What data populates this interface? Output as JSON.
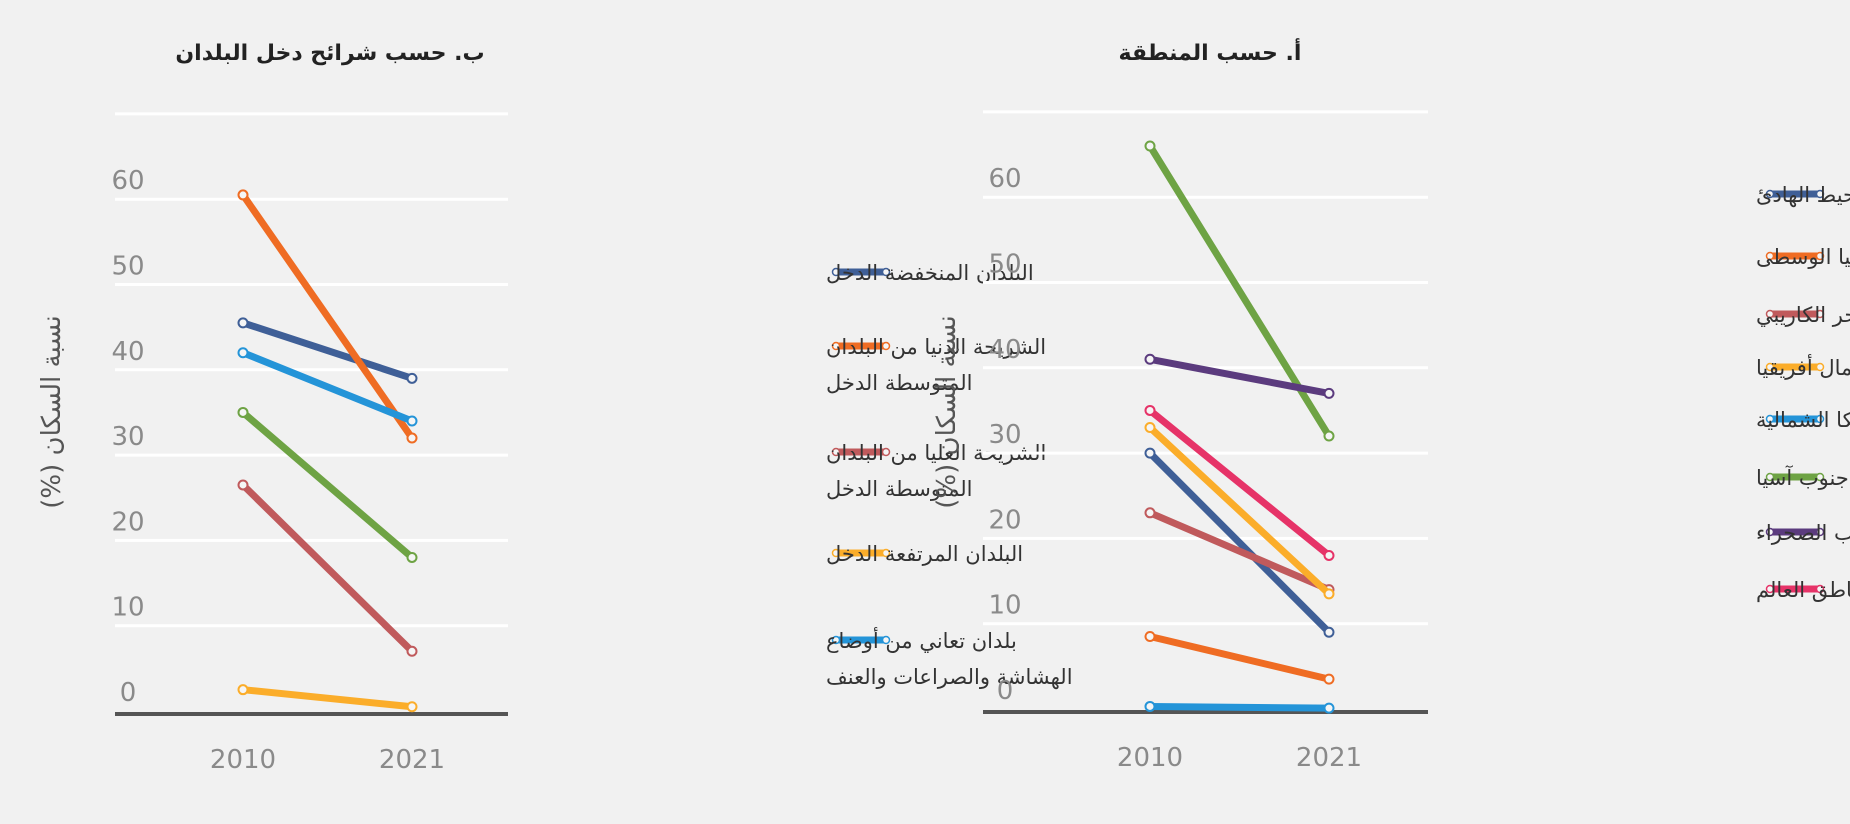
{
  "chart_data": [
    {
      "type": "line",
      "title": "ب. حسب شرائح دخل البلدان",
      "ylabel": "نسبة السكان (%)",
      "x": [
        "2010",
        "2021"
      ],
      "yticks": [
        0,
        10,
        20,
        30,
        40,
        50,
        60
      ],
      "ylim": [
        0,
        70
      ],
      "grid": true,
      "legend_position": "right",
      "series": [
        {
          "name": "البلدان المنخفضة الدخل",
          "values": [
            45.5,
            39
          ],
          "color": "#3f5f97"
        },
        {
          "name": "الشريحة الدنيا من البلدان المتوسطة الدخل",
          "values": [
            60.5,
            32
          ],
          "color": "#ef6c23"
        },
        {
          "name": "الشريحة العليا من البلدان المتوسطة الدخل",
          "values": [
            26.5,
            7
          ],
          "color": "#c05a5c"
        },
        {
          "name": "البلدان المرتفعة الدخل",
          "values": [
            2.5,
            0.5
          ],
          "color": "#fbad2a"
        },
        {
          "name": "بلدان تعاني من أوضاع الهشاشة والصراعات والعنف",
          "values": [
            42,
            34
          ],
          "color": "#2494d8"
        },
        {
          "name": "",
          "values": [
            35,
            18
          ],
          "color": "#6ea344"
        }
      ]
    },
    {
      "type": "line",
      "title": "أ. حسب المنطقة",
      "ylabel": "نسبة السكان (%)",
      "x": [
        "2010",
        "2021"
      ],
      "yticks": [
        0,
        10,
        20,
        30,
        40,
        50,
        60
      ],
      "ylim": [
        0,
        70
      ],
      "grid": true,
      "legend_position": "right",
      "series": [
        {
          "name": "شرق آسيا والمحيط الهادئ",
          "values": [
            30,
            9
          ],
          "color": "#3f5f97"
        },
        {
          "name": "أوروبا وآسيا الوسطى",
          "values": [
            8.5,
            3.5
          ],
          "color": "#ef6c23"
        },
        {
          "name": "أمريكا اللاتينية والبحر الكاريبي",
          "values": [
            23,
            14
          ],
          "color": "#c05a5c"
        },
        {
          "name": "الشرق الأوسط وشمال أفريقيا",
          "values": [
            33,
            13.5
          ],
          "color": "#fbad2a"
        },
        {
          "name": "أمريكا الشمالية",
          "values": [
            0.3,
            0.1
          ],
          "color": "#2494d8"
        },
        {
          "name": "جنوب آسيا",
          "values": [
            66,
            32
          ],
          "color": "#6ea344"
        },
        {
          "name": "أفريقيا جنوب الصحراء",
          "values": [
            41,
            37
          ],
          "color": "#5b3b7e"
        },
        {
          "name": "مناطق العالم",
          "values": [
            35,
            18
          ],
          "color": "#e63368"
        }
      ]
    }
  ]
}
